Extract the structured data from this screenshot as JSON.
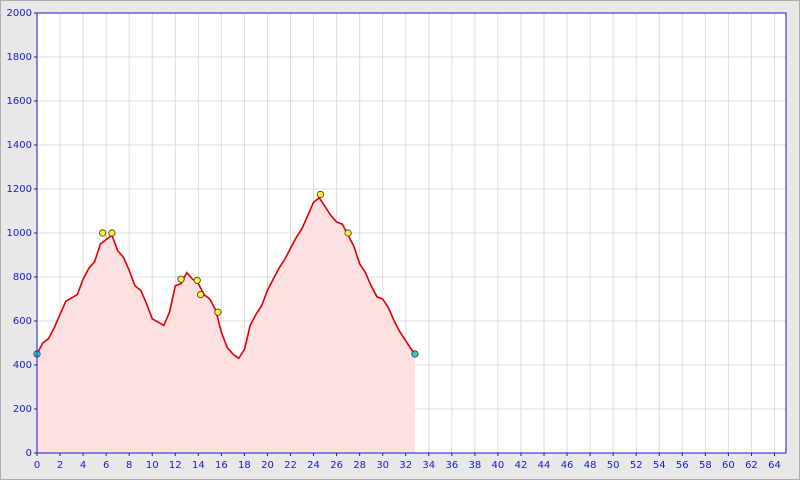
{
  "chart_data": {
    "type": "area",
    "x": [
      0,
      0.5,
      1,
      1.5,
      2,
      2.5,
      3,
      3.5,
      4,
      4.5,
      5,
      5.5,
      6,
      6.5,
      7,
      7.5,
      8,
      8.5,
      9,
      9.5,
      10,
      10.5,
      11,
      11.5,
      12,
      12.5,
      13,
      13.5,
      14,
      14.5,
      15,
      15.5,
      16,
      16.5,
      17,
      17.5,
      18,
      18.5,
      19,
      19.5,
      20,
      20.5,
      21,
      21.5,
      22,
      22.5,
      23,
      23.5,
      24,
      24.5,
      25,
      25.5,
      26,
      26.5,
      27,
      27.5,
      28,
      28.5,
      29,
      29.5,
      30,
      30.5,
      31,
      31.5,
      32,
      32.5,
      32.8
    ],
    "values": [
      450,
      500,
      520,
      570,
      630,
      690,
      705,
      720,
      790,
      840,
      870,
      950,
      970,
      990,
      920,
      890,
      830,
      760,
      740,
      680,
      610,
      595,
      580,
      640,
      760,
      770,
      820,
      790,
      770,
      720,
      700,
      650,
      550,
      480,
      450,
      430,
      470,
      580,
      630,
      670,
      740,
      790,
      840,
      880,
      930,
      980,
      1020,
      1080,
      1140,
      1160,
      1120,
      1080,
      1050,
      1040,
      990,
      940,
      860,
      820,
      760,
      710,
      700,
      660,
      600,
      550,
      510,
      470,
      450
    ],
    "color": "#e00000",
    "fill": "#ffe0e0",
    "points": [
      {
        "color": "#33cccc",
        "x": [
          0,
          32.8
        ],
        "values": [
          450,
          450
        ]
      },
      {
        "color": "#ffee33",
        "x": [
          5.7,
          6.5,
          12.5,
          13.9,
          14.2,
          15.7,
          24.6,
          27
        ],
        "values": [
          1000,
          1000,
          790,
          785,
          720,
          640,
          1175,
          1000
        ]
      }
    ],
    "xlim": [
      0,
      65
    ],
    "ylim": [
      0,
      2000
    ],
    "xticks": [
      0,
      2,
      4,
      6,
      8,
      10,
      12,
      14,
      16,
      18,
      20,
      22,
      24,
      26,
      28,
      30,
      32,
      34,
      36,
      38,
      40,
      42,
      44,
      46,
      48,
      50,
      52,
      54,
      56,
      58,
      60,
      62,
      64
    ],
    "yticks": [
      0,
      200,
      400,
      600,
      800,
      1000,
      1200,
      1400,
      1600,
      1800,
      2000
    ],
    "grid": true
  }
}
